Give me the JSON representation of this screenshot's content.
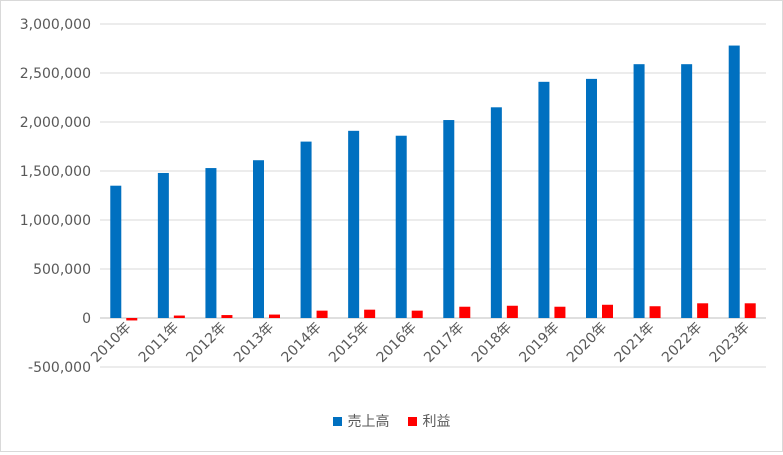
{
  "chart_data": {
    "type": "bar",
    "categories": [
      "2010年",
      "2011年",
      "2012年",
      "2013年",
      "2014年",
      "2015年",
      "2016年",
      "2017年",
      "2018年",
      "2019年",
      "2020年",
      "2021年",
      "2022年",
      "2023年"
    ],
    "series": [
      {
        "name": "売上高",
        "color": "#0070c0",
        "values": [
          1350000,
          1480000,
          1530000,
          1610000,
          1800000,
          1910000,
          1860000,
          2020000,
          2150000,
          2410000,
          2440000,
          2590000,
          2590000,
          2780000
        ]
      },
      {
        "name": "利益",
        "color": "#ff0000",
        "values": [
          -25000,
          25000,
          30000,
          35000,
          75000,
          85000,
          75000,
          115000,
          125000,
          115000,
          135000,
          120000,
          150000,
          150000
        ]
      }
    ],
    "ylim": [
      -500000,
      3000000
    ],
    "yticks": [
      -500000,
      0,
      500000,
      1000000,
      1500000,
      2000000,
      2500000,
      3000000
    ],
    "ytick_labels": [
      "-500,000",
      "0",
      "500,000",
      "1,000,000",
      "1,500,000",
      "2,000,000",
      "2,500,000",
      "3,000,000"
    ],
    "grid": true,
    "legend": "bottom"
  }
}
